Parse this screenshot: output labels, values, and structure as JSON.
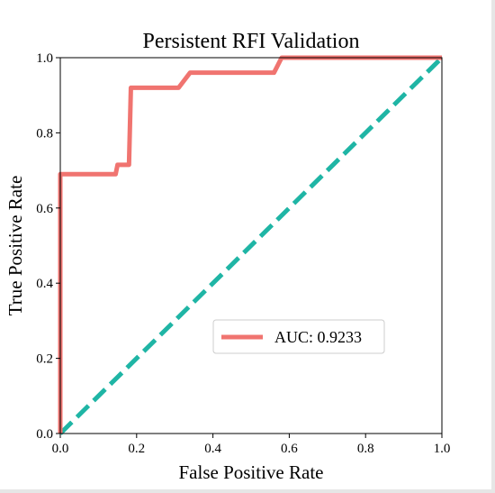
{
  "chart_data": {
    "type": "line",
    "title": "Persistent RFI Validation",
    "xlabel": "False Positive Rate",
    "ylabel": "True Positive Rate",
    "xlim": [
      0,
      1
    ],
    "ylim": [
      0,
      1
    ],
    "xticks": [
      "0.0",
      "0.2",
      "0.4",
      "0.6",
      "0.8",
      "1.0"
    ],
    "yticks": [
      "0.0",
      "0.2",
      "0.4",
      "0.6",
      "0.8",
      "1.0"
    ],
    "grid": false,
    "legend_position": "center-right",
    "series": [
      {
        "name": "AUC: 0.9233",
        "color": "#f07470",
        "style": "solid",
        "x": [
          0.0,
          0.0,
          0.145,
          0.15,
          0.18,
          0.185,
          0.31,
          0.34,
          0.56,
          0.58,
          1.0
        ],
        "y": [
          0.0,
          0.69,
          0.69,
          0.715,
          0.715,
          0.92,
          0.92,
          0.96,
          0.96,
          1.0,
          1.0
        ]
      },
      {
        "color": "#1fb5a5",
        "style": "dashed",
        "x": [
          0,
          1
        ],
        "y": [
          0,
          1
        ]
      }
    ]
  }
}
